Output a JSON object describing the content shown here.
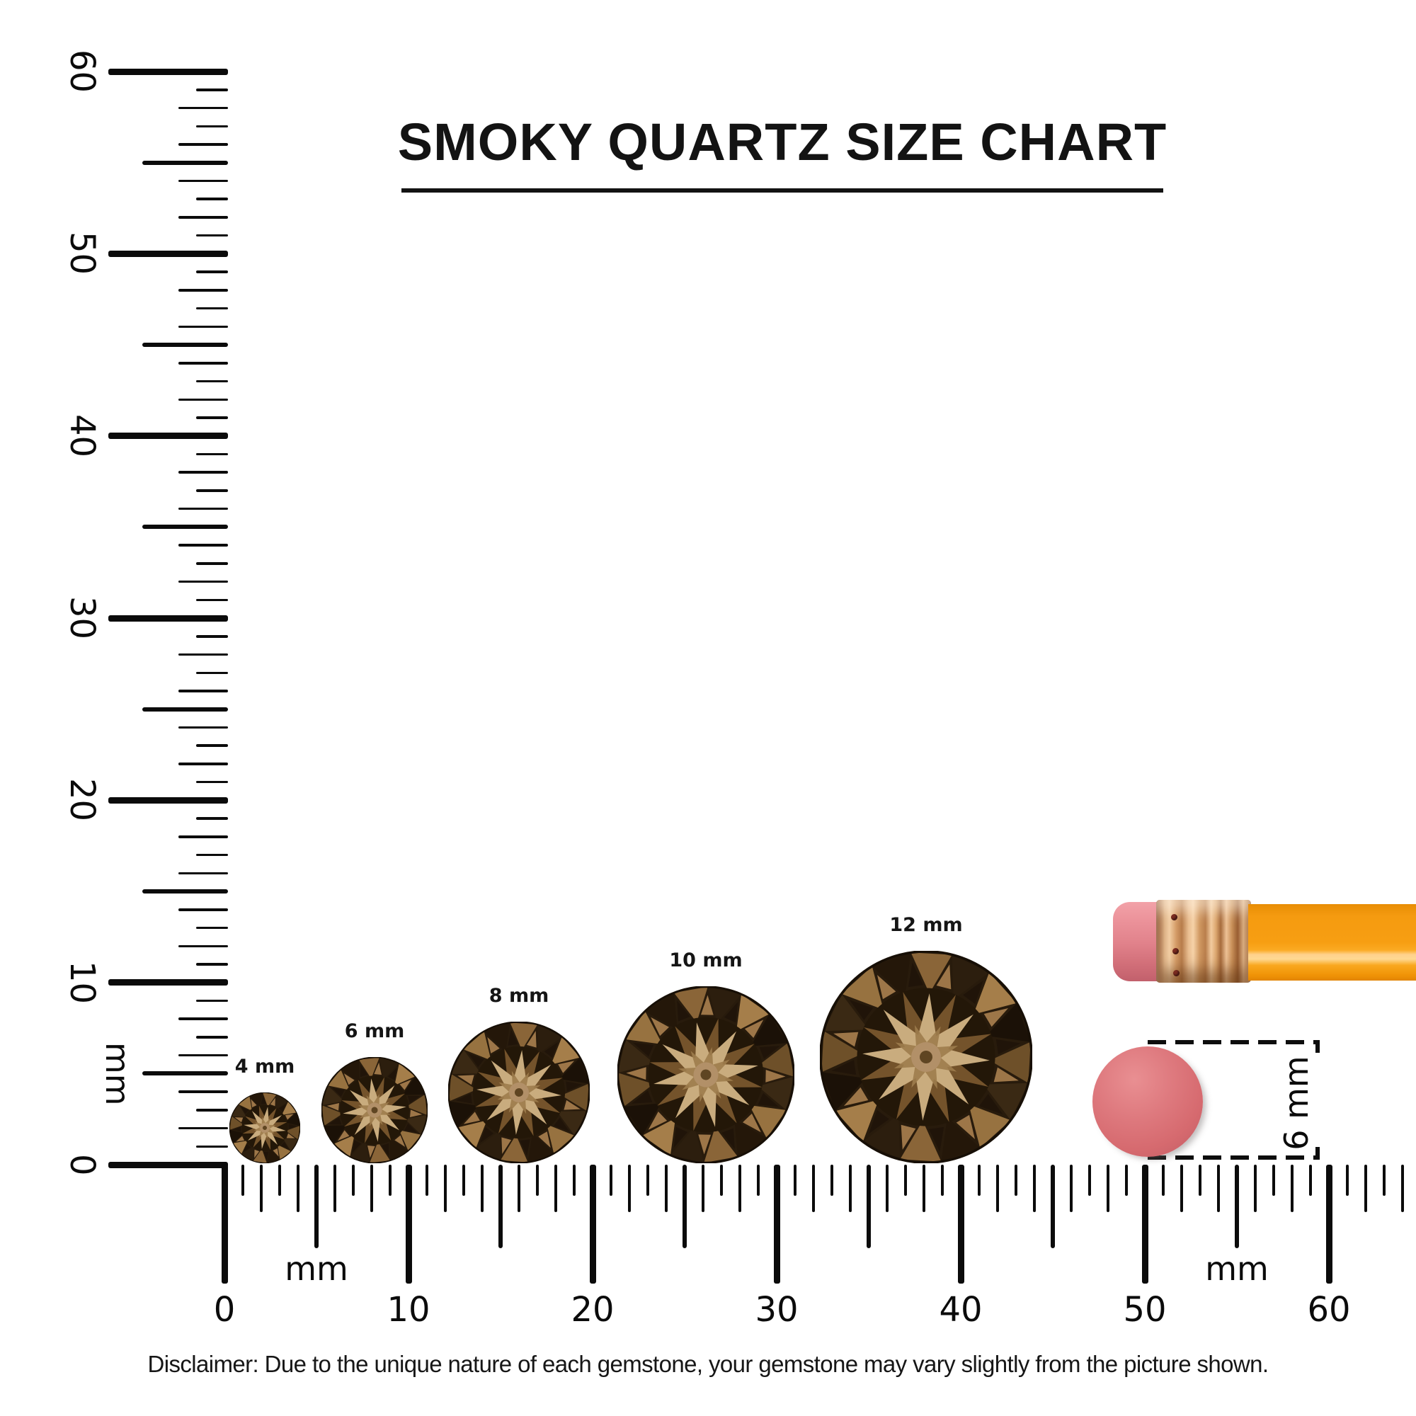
{
  "title": {
    "text": "SMOKY QUARTZ SIZE CHART"
  },
  "vertical_ruler": {
    "unit": "mm",
    "labels": [
      "60",
      "50",
      "40",
      "30",
      "20",
      "10",
      "0"
    ]
  },
  "horizontal_ruler": {
    "unit_left": "mm",
    "unit_right": "mm",
    "labels": [
      "0",
      "10",
      "20",
      "30",
      "40",
      "50",
      "60"
    ]
  },
  "gems": [
    {
      "label": "4 mm",
      "mm": 4
    },
    {
      "label": "6 mm",
      "mm": 6
    },
    {
      "label": "8 mm",
      "mm": 8
    },
    {
      "label": "10 mm",
      "mm": 10
    },
    {
      "label": "12 mm",
      "mm": 12
    }
  ],
  "eraser_reference": {
    "label": "6 mm",
    "mm": 6,
    "color": "#d66a6f"
  },
  "pencil": {
    "body_color": "#f79e12",
    "ferrule_color": "#d9a06b",
    "eraser_color": "#e1828b"
  },
  "disclaimer": "Disclaimer: Due to the unique nature of each gemstone, your gemstone may vary slightly from the picture shown.",
  "colors": {
    "ink": "#0b0b0b",
    "gem_dark": "#241808",
    "gem_light": "#c9ac7e"
  },
  "chart_data": {
    "type": "table",
    "title": "SMOKY QUARTZ SIZE CHART",
    "unit": "mm",
    "ruler_range_mm": [
      0,
      60
    ],
    "gem_sizes_mm": [
      4,
      6,
      8,
      10,
      12
    ],
    "reference_object": {
      "name": "pencil eraser",
      "size_mm": 6
    }
  }
}
